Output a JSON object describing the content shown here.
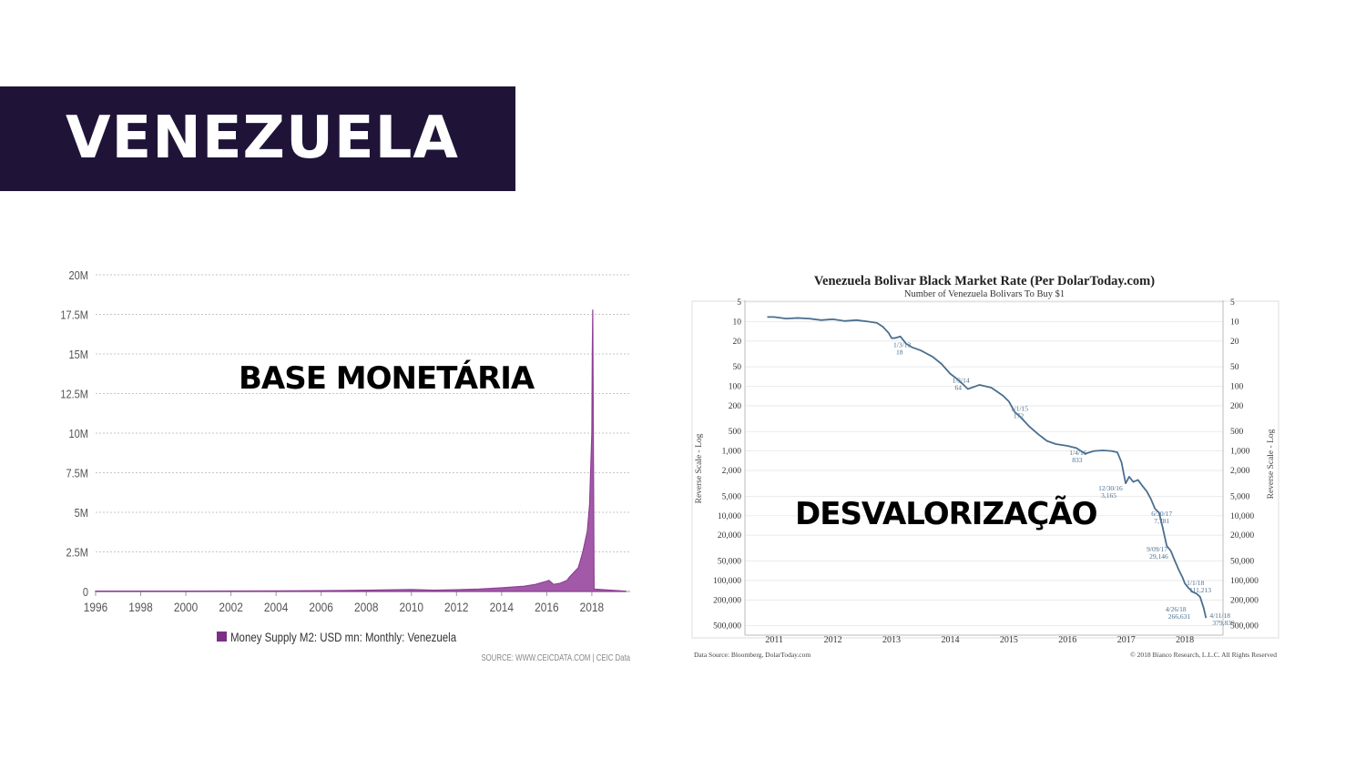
{
  "slide": {
    "title": "VENEZUELA",
    "label_left": "BASE MONETÁRIA",
    "label_right": "DESVALORIZAÇÃO",
    "colors": {
      "banner": "#1f1438",
      "title_text": "#ffffff",
      "series_left": "#8e3f95",
      "series_right": "#4a6f8f"
    }
  },
  "chart_data": [
    {
      "type": "area",
      "title": "",
      "xlabel": "",
      "ylabel": "",
      "xlim": [
        1996,
        2019.7
      ],
      "ylim": [
        0,
        20000000
      ],
      "x_ticks": [
        1996,
        1998,
        2000,
        2002,
        2004,
        2006,
        2008,
        2010,
        2012,
        2014,
        2016,
        2018
      ],
      "x_tick_labels": [
        "1996",
        "1998",
        "2000",
        "2002",
        "2004",
        "2006",
        "2008",
        "2010",
        "2012",
        "2014",
        "2016",
        "2018"
      ],
      "y_ticks": [
        0,
        2500000,
        5000000,
        7500000,
        10000000,
        12500000,
        15000000,
        17500000,
        20000000
      ],
      "y_tick_labels": [
        "0",
        "2.5M",
        "5M",
        "7.5M",
        "10M",
        "12.5M",
        "15M",
        "17.5M",
        "20M"
      ],
      "grid": true,
      "legend_position": "bottom-center",
      "source": "SOURCE: WWW.CEICDATA.COM | CEIC Data",
      "series": [
        {
          "name": "Money Supply M2: USD mn: Monthly: Venezuela",
          "color": "#8e3f95",
          "x": [
            1996,
            2000,
            2004,
            2006,
            2008,
            2009,
            2010,
            2011,
            2012,
            2013,
            2014,
            2015,
            2015.5,
            2016,
            2016.1,
            2016.3,
            2016.6,
            2016.9,
            2017,
            2017.2,
            2017.4,
            2017.6,
            2017.8,
            2017.9,
            2018,
            2018.02,
            2018.04,
            2018.06,
            2018.1,
            2019.5
          ],
          "y": [
            20000,
            25000,
            35000,
            50000,
            80000,
            100000,
            120000,
            80000,
            110000,
            150000,
            230000,
            330000,
            450000,
            650000,
            700000,
            450000,
            520000,
            700000,
            900000,
            1200000,
            1500000,
            2500000,
            3800000,
            5500000,
            10000000,
            15000000,
            17800000,
            12000000,
            150000,
            20000
          ]
        }
      ]
    },
    {
      "type": "line",
      "title": "Venezuela Bolivar Black Market Rate (Per DolarToday.com)",
      "subtitle": "Number of Venezuela Bolivars To Buy $1",
      "ylabel": "Reverse Scale - Log",
      "y_scale": "log-reversed",
      "ylim": [
        5,
        700000
      ],
      "y_ticks": [
        5,
        10,
        20,
        50,
        100,
        200,
        500,
        1000,
        2000,
        5000,
        10000,
        20000,
        50000,
        100000,
        200000,
        500000
      ],
      "y_tick_labels": [
        "5",
        "10",
        "20",
        "50",
        "100",
        "200",
        "500",
        "1,000",
        "2,000",
        "5,000",
        "10,000",
        "20,000",
        "50,000",
        "100,000",
        "200,000",
        "500,000"
      ],
      "xlim": [
        2010.5,
        2018.65
      ],
      "x_ticks": [
        2011,
        2012,
        2013,
        2014,
        2015,
        2016,
        2017,
        2018
      ],
      "x_tick_labels": [
        "2011",
        "2012",
        "2013",
        "2014",
        "2015",
        "2016",
        "2017",
        "2018"
      ],
      "grid": true,
      "source_left": "Data Source: Bloomberg, DolarToday.com",
      "source_right": "© 2018 Bianco Research, L.L.C. All Rights Reserved",
      "annotations": [
        {
          "x": 2013.0,
          "y": 18,
          "label": "1/3/13",
          "value": "18"
        },
        {
          "x": 2014.0,
          "y": 64,
          "label": "1/3/14",
          "value": "64"
        },
        {
          "x": 2015.0,
          "y": 172,
          "label": "1/1/15",
          "value": "172"
        },
        {
          "x": 2016.0,
          "y": 833,
          "label": "1/4/16",
          "value": "833"
        },
        {
          "x": 2016.99,
          "y": 3165,
          "label": "12/30/16",
          "value": "3,165"
        },
        {
          "x": 2017.49,
          "y": 7781,
          "label": "6/30/17",
          "value": "7,781"
        },
        {
          "x": 2017.69,
          "y": 29146,
          "label": "9/09/17",
          "value": "29,146"
        },
        {
          "x": 2018.0,
          "y": 111213,
          "label": "1/1/18",
          "value": "111,213"
        },
        {
          "x": 2018.32,
          "y": 266631,
          "label": "4/26/18",
          "value": "266,631"
        },
        {
          "x": 2018.36,
          "y": 379839,
          "label": "4/11/18",
          "value": "379,839"
        }
      ],
      "series": [
        {
          "name": "",
          "color": "#4a6f8f",
          "x": [
            2010.88,
            2011.0,
            2011.2,
            2011.4,
            2011.6,
            2011.8,
            2012.0,
            2012.2,
            2012.4,
            2012.6,
            2012.75,
            2012.85,
            2012.95,
            2013.0,
            2013.05,
            2013.15,
            2013.25,
            2013.35,
            2013.5,
            2013.7,
            2013.85,
            2014.0,
            2014.1,
            2014.2,
            2014.3,
            2014.5,
            2014.7,
            2014.9,
            2015.0,
            2015.1,
            2015.2,
            2015.35,
            2015.5,
            2015.65,
            2015.8,
            2016.0,
            2016.15,
            2016.3,
            2016.45,
            2016.6,
            2016.75,
            2016.85,
            2016.92,
            2016.99,
            2017.05,
            2017.12,
            2017.2,
            2017.28,
            2017.35,
            2017.42,
            2017.49,
            2017.56,
            2017.62,
            2017.69,
            2017.76,
            2017.83,
            2017.9,
            2017.96,
            2018.0,
            2018.06,
            2018.13,
            2018.2,
            2018.26,
            2018.32,
            2018.36
          ],
          "y": [
            8.5,
            8.5,
            9,
            8.8,
            9,
            9.5,
            9.2,
            9.8,
            9.5,
            10,
            10.5,
            12,
            15,
            18,
            18,
            17,
            22,
            25,
            28,
            35,
            45,
            64,
            75,
            90,
            110,
            95,
            105,
            140,
            172,
            250,
            300,
            420,
            550,
            700,
            780,
            833,
            900,
            1100,
            1000,
            980,
            1000,
            1050,
            1500,
            3165,
            2500,
            3000,
            2800,
            3500,
            4200,
            5500,
            7781,
            9000,
            15000,
            29146,
            35000,
            50000,
            70000,
            90000,
            111213,
            130000,
            150000,
            160000,
            180000,
            266631,
            379839
          ]
        }
      ]
    }
  ]
}
